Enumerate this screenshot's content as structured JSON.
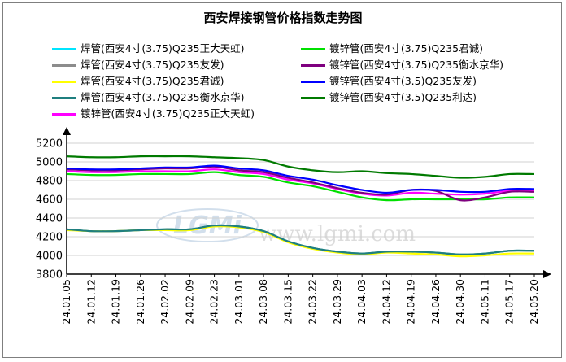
{
  "chart_data": {
    "type": "line",
    "title": "西安焊接钢管价格指数走势图",
    "watermark_text": "www.lgmi.com",
    "watermark_logo": "LGMi",
    "xlabel": "",
    "ylabel": "",
    "ylim": [
      3800,
      5200
    ],
    "yticks": [
      3800,
      4000,
      4200,
      4400,
      4600,
      4800,
      5000,
      5200
    ],
    "grid": "horizontal",
    "legend_position": "top",
    "x": [
      "24.01.05",
      "24.01.12",
      "24.01.19",
      "24.01.26",
      "24.02.02",
      "24.02.09",
      "24.02.23",
      "24.03.01",
      "24.03.08",
      "24.03.15",
      "24.03.22",
      "24.03.29",
      "24.04.03",
      "24.04.12",
      "24.04.19",
      "24.04.26",
      "24.04.30",
      "24.05.11",
      "24.05.17",
      "24.05.20"
    ],
    "series": [
      {
        "name": "焊管(西安4寸(3.75)Q235正大天虹)",
        "color": "#00e5ff",
        "legend_col": 0,
        "values": [
          4280,
          4260,
          4260,
          4270,
          4280,
          4280,
          4320,
          4310,
          4260,
          4150,
          4080,
          4040,
          4020,
          4040,
          4040,
          4030,
          4010,
          4020,
          4050,
          4050
        ]
      },
      {
        "name": "焊管(西安4寸(3.75)Q235友发)",
        "color": "#8c8c8c",
        "legend_col": 0,
        "values": [
          4280,
          4260,
          4260,
          4270,
          4280,
          4280,
          4320,
          4310,
          4260,
          4150,
          4080,
          4040,
          4020,
          4040,
          4040,
          4030,
          4010,
          4020,
          4050,
          4050
        ]
      },
      {
        "name": "焊管(西安4寸(3.75)Q235君诚)",
        "color": "#ffff00",
        "legend_col": 0,
        "values": [
          4270,
          4260,
          4260,
          4270,
          4270,
          4270,
          4310,
          4300,
          4250,
          4140,
          4070,
          4030,
          4010,
          4030,
          4020,
          4010,
          3990,
          4000,
          4020,
          4020
        ]
      },
      {
        "name": "焊管(西安4寸(3.75)Q235衡水京华)",
        "color": "#1f7f7f",
        "legend_col": 0,
        "values": [
          4280,
          4260,
          4260,
          4270,
          4280,
          4280,
          4320,
          4310,
          4260,
          4150,
          4080,
          4040,
          4020,
          4040,
          4040,
          4030,
          4010,
          4020,
          4050,
          4050
        ]
      },
      {
        "name": "镀锌管(西安4寸(3.75)Q235正大天虹)",
        "color": "#ff00ff",
        "legend_col": 0,
        "values": [
          4900,
          4890,
          4890,
          4900,
          4900,
          4900,
          4920,
          4890,
          4870,
          4810,
          4770,
          4710,
          4660,
          4640,
          4670,
          4660,
          4650,
          4660,
          4690,
          4690
        ]
      },
      {
        "name": "镀锌管(西安4寸(3.75)Q235君诚)",
        "color": "#00e000",
        "legend_col": 1,
        "values": [
          4870,
          4860,
          4860,
          4870,
          4870,
          4870,
          4890,
          4860,
          4840,
          4780,
          4740,
          4680,
          4620,
          4590,
          4600,
          4600,
          4600,
          4600,
          4620,
          4620
        ]
      },
      {
        "name": "镀锌管(西安4寸(3.75)Q235衡水京华)",
        "color": "#7f007f",
        "legend_col": 1,
        "values": [
          4920,
          4910,
          4910,
          4920,
          4930,
          4930,
          4950,
          4910,
          4890,
          4830,
          4780,
          4720,
          4670,
          4650,
          4700,
          4690,
          4590,
          4620,
          4680,
          4680
        ]
      },
      {
        "name": "镀锌管(西安4寸(3.5)Q235友发)",
        "color": "#0000ff",
        "legend_col": 1,
        "values": [
          4930,
          4920,
          4920,
          4930,
          4940,
          4940,
          4960,
          4930,
          4910,
          4850,
          4810,
          4750,
          4700,
          4670,
          4700,
          4700,
          4680,
          4680,
          4710,
          4710
        ]
      },
      {
        "name": "镀锌管(西安4寸(3.5)Q235利达)",
        "color": "#007a00",
        "legend_col": 1,
        "values": [
          5060,
          5050,
          5050,
          5060,
          5060,
          5060,
          5050,
          5040,
          5020,
          4950,
          4910,
          4890,
          4900,
          4880,
          4870,
          4850,
          4830,
          4840,
          4870,
          4870
        ]
      }
    ]
  }
}
